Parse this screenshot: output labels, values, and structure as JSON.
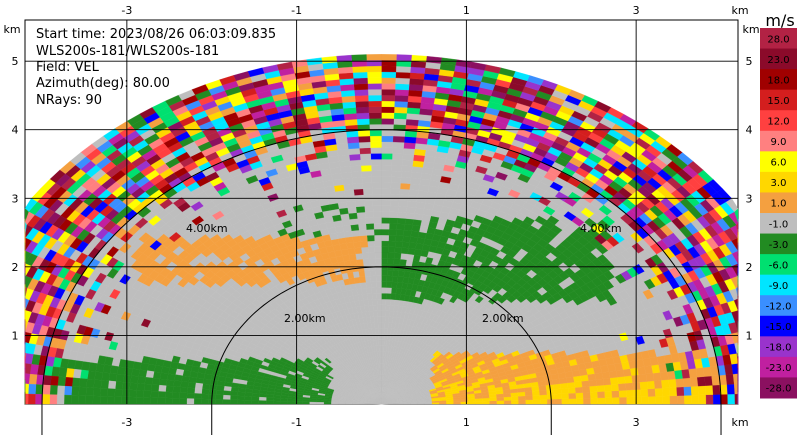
{
  "header": {
    "start_time": "Start time: 2023/08/26 06:03:09.835",
    "instrument": "WLS200s-181/WLS200s-181",
    "field": "Field: VEL",
    "azimuth": "Azimuth(deg): 80.00",
    "nrays": "NRays: 90"
  },
  "colorbar": {
    "unit": "m/s",
    "labels": [
      "28.0",
      "23.0",
      "18.0",
      "15.0",
      "12.0",
      "9.0",
      "6.0",
      "3.0",
      "1.0",
      "-1.0",
      "-3.0",
      "-6.0",
      "-9.0",
      "-12.0",
      "-15.0",
      "-18.0",
      "-23.0",
      "-28.0"
    ],
    "colors": [
      "#b22244",
      "#8b0a2a",
      "#a00000",
      "#d41e1e",
      "#ff4040",
      "#ff8080",
      "#ffff00",
      "#ffd700",
      "#f4a040",
      "#bebebe",
      "#228b22",
      "#00e070",
      "#00e5ff",
      "#3a8fff",
      "#0000ff",
      "#9933cc",
      "#c020a0",
      "#8b1060"
    ]
  },
  "range_rings": {
    "ring_1_label": "2.00km",
    "ring_2_label": "2.00km",
    "ring_3_label": "4.00km",
    "ring_4_label": "4.00km"
  },
  "chart_data": {
    "type": "heatmap",
    "subtype": "RHI lidar radial velocity",
    "x_unit": "km",
    "y_unit": "km",
    "xlim": [
      -4.2,
      4.2
    ],
    "ylim": [
      0,
      5.6
    ],
    "x_ticks": [
      "-3",
      "-1",
      "1",
      "3"
    ],
    "y_ticks": [
      "1",
      "2",
      "3",
      "4",
      "5"
    ],
    "range_rings_km": [
      2,
      4
    ],
    "max_range_km": 5.1,
    "grid": true,
    "regions": [
      {
        "feature": "low-level green band (negative velocity)",
        "x_range": [
          -4.2,
          -0.6
        ],
        "y_range": [
          0,
          0.6
        ],
        "value_ms": -2
      },
      {
        "feature": "low-level orange/yellow band (positive velocity)",
        "x_range": [
          0.6,
          4.0
        ],
        "y_range": [
          0,
          0.7
        ],
        "value_ms": 4
      },
      {
        "feature": "mid-level orange patch",
        "x_range": [
          -2.8,
          -0.2
        ],
        "y_range": [
          1.8,
          2.4
        ],
        "value_ms": 1.5
      },
      {
        "feature": "mid-level green patch",
        "x_range": [
          0.0,
          2.6
        ],
        "y_range": [
          1.6,
          2.6
        ],
        "value_ms": -2
      },
      {
        "feature": "noise beyond ~4 km",
        "x_range": [
          -4.2,
          4.2
        ],
        "y_range": [
          0,
          5.1
        ],
        "value_ms": "random"
      }
    ]
  }
}
